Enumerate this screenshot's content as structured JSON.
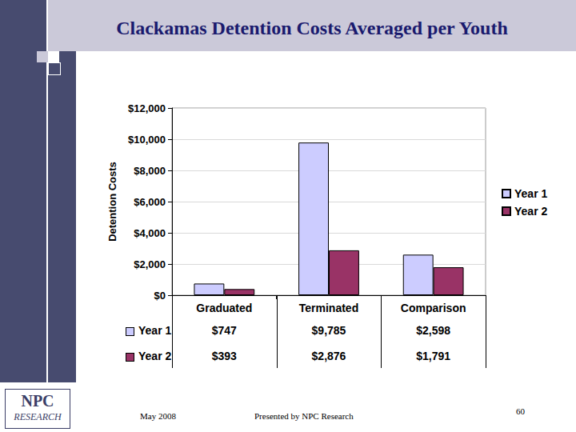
{
  "chart_data": {
    "type": "bar",
    "title": "Clackamas Detention Costs Averaged per Youth",
    "y_label": "Detention Costs",
    "categories": [
      "Graduated",
      "Terminated",
      "Comparison"
    ],
    "series": [
      {
        "name": "Year 1",
        "color": "#ccccff",
        "values": [
          747,
          9785,
          2598
        ],
        "value_labels": [
          "$747",
          "$9,785",
          "$2,598"
        ]
      },
      {
        "name": "Year 2",
        "color": "#993366",
        "values": [
          393,
          2876,
          1791
        ],
        "value_labels": [
          "$393",
          "$2,876",
          "$1,791"
        ]
      }
    ],
    "ylim": [
      0,
      12000
    ],
    "yticks": [
      {
        "value": 0,
        "label": "$0"
      },
      {
        "value": 2000,
        "label": "$2,000"
      },
      {
        "value": 4000,
        "label": "$4,000"
      },
      {
        "value": 6000,
        "label": "$6,000"
      },
      {
        "value": 8000,
        "label": "$8,000"
      },
      {
        "value": 10000,
        "label": "$10,000"
      },
      {
        "value": 12000,
        "label": "$12,000"
      }
    ],
    "grid": true,
    "legend": "right"
  },
  "slide": {
    "date": "May 2008",
    "presenter": "Presented by NPC Research",
    "page": "60",
    "logo": [
      "NPC",
      "RESEARCH"
    ]
  }
}
